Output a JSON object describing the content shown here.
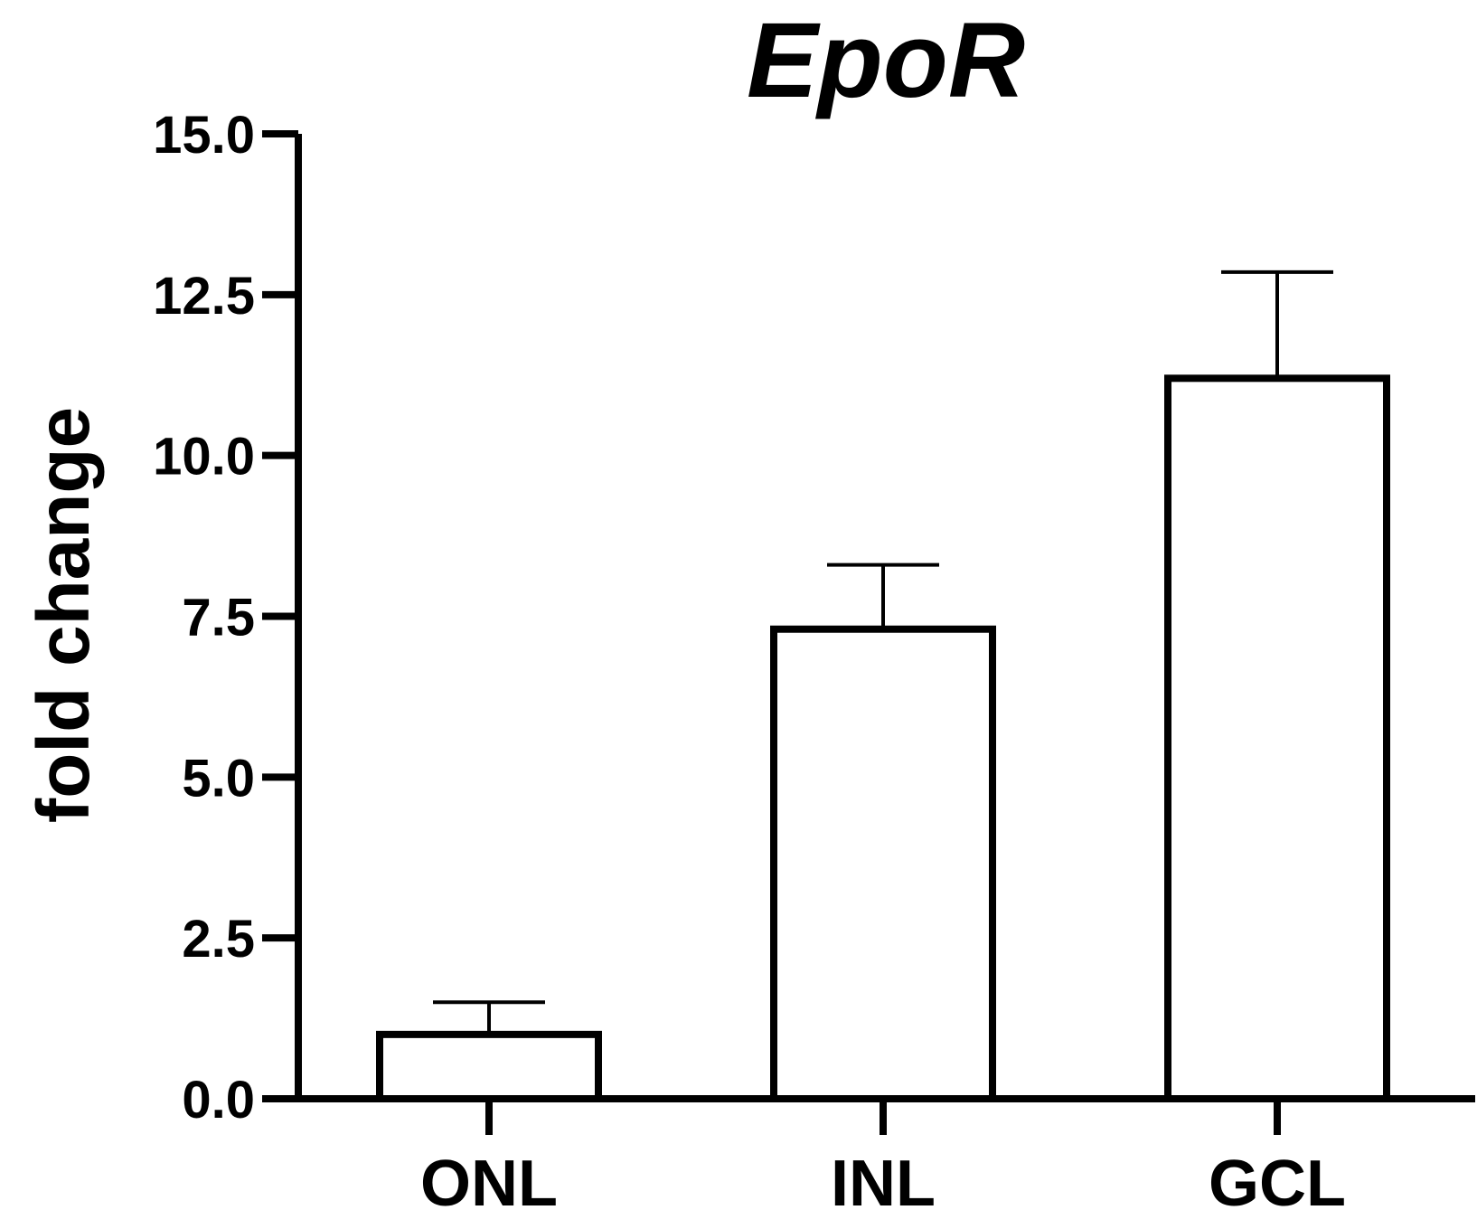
{
  "chart_data": {
    "type": "bar",
    "title": "EpoR",
    "xlabel": "",
    "ylabel": "fold change",
    "categories": [
      "ONL",
      "INL",
      "GCL"
    ],
    "values": [
      1.0,
      7.3,
      11.2
    ],
    "error_upper": [
      1.5,
      8.3,
      12.85
    ],
    "ylim": [
      0,
      15
    ],
    "yticks": [
      "0.0",
      "2.5",
      "5.0",
      "7.5",
      "10.0",
      "12.5",
      "15.0"
    ],
    "ytick_values": [
      0,
      2.5,
      5,
      7.5,
      10,
      12.5,
      15
    ],
    "bar_fill": "#ffffff",
    "bar_stroke": "#000000",
    "grid": false,
    "legend": "none"
  }
}
